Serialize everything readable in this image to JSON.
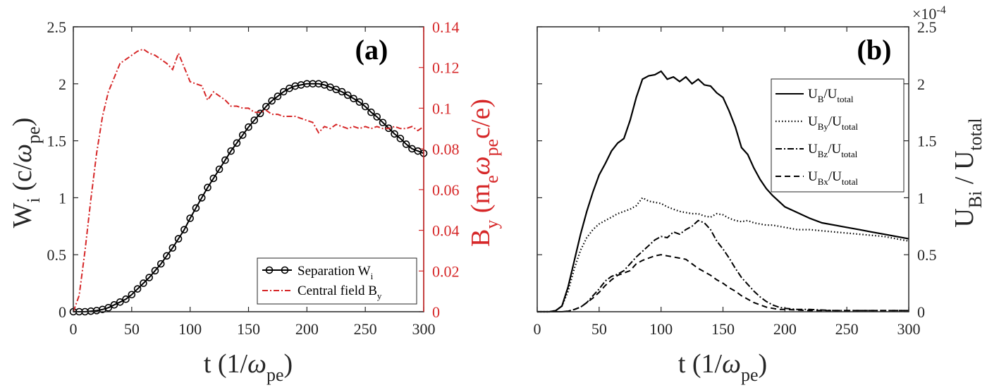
{
  "chart_data": [
    {
      "panel": "a",
      "type": "line",
      "panel_label": "(a)",
      "xlim": [
        0,
        300
      ],
      "ylim": [
        0,
        2.5
      ],
      "y2lim": [
        0,
        0.14
      ],
      "xticks": [
        "0",
        "50",
        "100",
        "150",
        "200",
        "250",
        "300"
      ],
      "yticks": [
        "0",
        "0.5",
        "1",
        "1.5",
        "2",
        "2.5"
      ],
      "y2ticks": [
        "0",
        "0.02",
        "0.04",
        "0.06",
        "0.08",
        "0.1",
        "0.12",
        "0.14"
      ],
      "xlabel": {
        "main": "t (1/",
        "greek": "ω",
        "sub": "pe",
        "close": ")"
      },
      "ylabel": {
        "main": "W",
        "sub": "i",
        "rest": " (c/",
        "greek": "ω",
        "sub2": "pe",
        "close": ")"
      },
      "y2label": {
        "main": "B",
        "sub": "y",
        "rest": " (m",
        "sub2": "e",
        "greek": "ω",
        "sub3": "pe",
        "close": "c/e)"
      },
      "accent_color": "#d62728",
      "legend": [
        {
          "label": "Separation W",
          "sub": "i",
          "style": "solid-marker",
          "color": "#000000"
        },
        {
          "label": "Central field B",
          "sub": "y",
          "style": "dashdot",
          "color": "#d62728"
        }
      ],
      "series": [
        {
          "name": "Separation Wi",
          "axis": "left",
          "x": [
            0,
            5,
            10,
            15,
            20,
            25,
            30,
            35,
            40,
            45,
            50,
            55,
            60,
            65,
            70,
            75,
            80,
            85,
            90,
            95,
            100,
            105,
            110,
            115,
            120,
            125,
            130,
            135,
            140,
            145,
            150,
            155,
            160,
            165,
            170,
            175,
            180,
            185,
            190,
            195,
            200,
            205,
            210,
            215,
            220,
            225,
            230,
            235,
            240,
            245,
            250,
            255,
            260,
            265,
            270,
            275,
            280,
            285,
            290,
            295,
            300
          ],
          "y": [
            0,
            0,
            0,
            0.005,
            0.01,
            0.02,
            0.035,
            0.06,
            0.085,
            0.11,
            0.15,
            0.2,
            0.25,
            0.3,
            0.36,
            0.42,
            0.49,
            0.56,
            0.64,
            0.72,
            0.82,
            0.91,
            1.0,
            1.09,
            1.17,
            1.25,
            1.33,
            1.41,
            1.48,
            1.55,
            1.62,
            1.68,
            1.74,
            1.8,
            1.85,
            1.89,
            1.93,
            1.96,
            1.98,
            1.99,
            2.0,
            2.0,
            2.0,
            1.99,
            1.97,
            1.95,
            1.93,
            1.9,
            1.87,
            1.84,
            1.8,
            1.75,
            1.71,
            1.66,
            1.61,
            1.56,
            1.52,
            1.47,
            1.43,
            1.41,
            1.39
          ]
        },
        {
          "name": "Central field By",
          "axis": "right",
          "x": [
            0,
            5,
            10,
            15,
            20,
            25,
            30,
            35,
            40,
            45,
            50,
            55,
            60,
            65,
            70,
            75,
            80,
            85,
            90,
            95,
            100,
            105,
            110,
            115,
            120,
            125,
            130,
            135,
            140,
            145,
            150,
            155,
            160,
            165,
            170,
            175,
            180,
            185,
            190,
            195,
            200,
            205,
            210,
            215,
            220,
            225,
            230,
            235,
            240,
            245,
            250,
            255,
            260,
            265,
            270,
            275,
            280,
            285,
            290,
            295,
            300
          ],
          "y": [
            0,
            0.008,
            0.03,
            0.055,
            0.078,
            0.096,
            0.108,
            0.115,
            0.122,
            0.124,
            0.126,
            0.128,
            0.129,
            0.127,
            0.126,
            0.124,
            0.122,
            0.119,
            0.127,
            0.12,
            0.113,
            0.112,
            0.111,
            0.104,
            0.108,
            0.106,
            0.104,
            0.101,
            0.101,
            0.1,
            0.1,
            0.098,
            0.098,
            0.099,
            0.097,
            0.097,
            0.096,
            0.096,
            0.096,
            0.095,
            0.094,
            0.093,
            0.088,
            0.091,
            0.09,
            0.092,
            0.091,
            0.09,
            0.091,
            0.09,
            0.091,
            0.09,
            0.091,
            0.09,
            0.09,
            0.091,
            0.09,
            0.09,
            0.091,
            0.089,
            0.091
          ]
        }
      ]
    },
    {
      "panel": "b",
      "type": "line",
      "panel_label": "(b)",
      "xlim": [
        0,
        300
      ],
      "ylim": [
        0,
        2.5
      ],
      "multiplier": "×10",
      "multiplier_exp": "-4",
      "xticks": [
        "0",
        "50",
        "100",
        "150",
        "200",
        "250",
        "300"
      ],
      "yticks": [
        "0",
        "0.5",
        "1",
        "1.5",
        "2",
        "2.5"
      ],
      "xlabel": {
        "main": "t (1/",
        "greek": "ω",
        "sub": "pe",
        "close": ")"
      },
      "ylabel": {
        "main": "U",
        "sub": "Bi",
        "rest": " / U",
        "sub2": "total"
      },
      "legend": [
        {
          "label": "U",
          "sub": "B",
          "tail": "/U",
          "sub2": "total",
          "style": "solid"
        },
        {
          "label": "U",
          "sub": "By",
          "tail": "/U",
          "sub2": "total",
          "style": "dotted"
        },
        {
          "label": "U",
          "sub": "Bz",
          "tail": "/U",
          "sub2": "total",
          "style": "dashdot"
        },
        {
          "label": "U",
          "sub": "Bx",
          "tail": "/U",
          "sub2": "total",
          "style": "dashed"
        }
      ],
      "series": [
        {
          "name": "UB/Utotal",
          "x": [
            0,
            10,
            15,
            20,
            25,
            30,
            35,
            40,
            45,
            50,
            55,
            60,
            65,
            70,
            75,
            80,
            85,
            90,
            95,
            100,
            105,
            110,
            115,
            120,
            125,
            130,
            135,
            140,
            145,
            150,
            155,
            160,
            165,
            170,
            175,
            180,
            185,
            190,
            195,
            200,
            210,
            220,
            230,
            240,
            250,
            260,
            270,
            280,
            290,
            300
          ],
          "y": [
            0,
            0,
            0.01,
            0.05,
            0.22,
            0.45,
            0.68,
            0.88,
            1.05,
            1.2,
            1.3,
            1.41,
            1.48,
            1.52,
            1.68,
            1.88,
            2.04,
            2.07,
            2.08,
            2.11,
            2.04,
            2.06,
            2.02,
            2.06,
            2.0,
            2.04,
            1.99,
            1.98,
            1.92,
            1.88,
            1.76,
            1.62,
            1.44,
            1.38,
            1.26,
            1.16,
            1.08,
            1.02,
            0.97,
            0.92,
            0.87,
            0.82,
            0.78,
            0.76,
            0.74,
            0.72,
            0.7,
            0.68,
            0.66,
            0.64
          ]
        },
        {
          "name": "UBy/Utotal",
          "x": [
            0,
            10,
            15,
            20,
            25,
            30,
            35,
            40,
            45,
            50,
            55,
            60,
            65,
            70,
            75,
            80,
            85,
            90,
            95,
            100,
            105,
            110,
            115,
            120,
            125,
            130,
            135,
            140,
            145,
            150,
            155,
            160,
            165,
            170,
            175,
            180,
            185,
            190,
            195,
            200,
            210,
            220,
            230,
            240,
            250,
            260,
            270,
            280,
            290,
            300
          ],
          "y": [
            0,
            0,
            0.01,
            0.05,
            0.18,
            0.38,
            0.54,
            0.65,
            0.72,
            0.77,
            0.8,
            0.83,
            0.86,
            0.88,
            0.9,
            0.93,
            1.0,
            0.97,
            0.96,
            0.95,
            0.92,
            0.9,
            0.88,
            0.87,
            0.86,
            0.86,
            0.84,
            0.83,
            0.86,
            0.85,
            0.82,
            0.8,
            0.79,
            0.8,
            0.78,
            0.77,
            0.76,
            0.76,
            0.75,
            0.74,
            0.72,
            0.72,
            0.71,
            0.7,
            0.69,
            0.68,
            0.67,
            0.66,
            0.64,
            0.62
          ]
        },
        {
          "name": "UBz/Utotal",
          "x": [
            0,
            20,
            25,
            30,
            35,
            40,
            45,
            50,
            55,
            60,
            65,
            70,
            75,
            80,
            85,
            90,
            95,
            100,
            105,
            110,
            115,
            120,
            125,
            130,
            135,
            140,
            145,
            150,
            155,
            160,
            165,
            170,
            175,
            180,
            185,
            190,
            195,
            200,
            210,
            220,
            230,
            240,
            250,
            260,
            270,
            280,
            290,
            300
          ],
          "y": [
            0,
            0,
            0.005,
            0.02,
            0.04,
            0.08,
            0.14,
            0.2,
            0.27,
            0.31,
            0.33,
            0.36,
            0.42,
            0.48,
            0.53,
            0.58,
            0.63,
            0.66,
            0.65,
            0.7,
            0.68,
            0.72,
            0.75,
            0.8,
            0.78,
            0.72,
            0.62,
            0.55,
            0.47,
            0.38,
            0.3,
            0.24,
            0.18,
            0.13,
            0.09,
            0.06,
            0.04,
            0.03,
            0.02,
            0.02,
            0.015,
            0.01,
            0.01,
            0.01,
            0.01,
            0.01,
            0.01,
            0.01
          ]
        },
        {
          "name": "UBx/Utotal",
          "x": [
            0,
            20,
            25,
            30,
            35,
            40,
            45,
            50,
            55,
            60,
            65,
            70,
            75,
            80,
            85,
            90,
            95,
            100,
            105,
            110,
            115,
            120,
            125,
            130,
            135,
            140,
            145,
            150,
            155,
            160,
            165,
            170,
            175,
            180,
            185,
            190,
            195,
            200,
            210,
            220,
            230,
            240,
            250,
            260,
            270,
            280,
            290,
            300
          ],
          "y": [
            0,
            0,
            0.005,
            0.02,
            0.04,
            0.08,
            0.12,
            0.17,
            0.23,
            0.28,
            0.32,
            0.34,
            0.36,
            0.42,
            0.45,
            0.47,
            0.49,
            0.5,
            0.49,
            0.48,
            0.47,
            0.46,
            0.42,
            0.38,
            0.35,
            0.32,
            0.28,
            0.25,
            0.21,
            0.18,
            0.14,
            0.11,
            0.08,
            0.06,
            0.04,
            0.03,
            0.02,
            0.02,
            0.015,
            0.01,
            0.01,
            0.01,
            0.01,
            0.01,
            0.01,
            0.01,
            0.01,
            0.01
          ]
        }
      ]
    }
  ]
}
